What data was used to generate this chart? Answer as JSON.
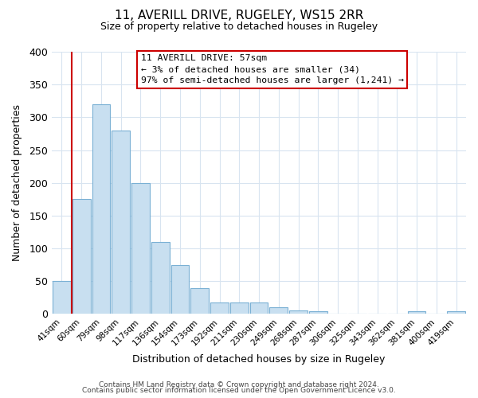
{
  "title": "11, AVERILL DRIVE, RUGELEY, WS15 2RR",
  "subtitle": "Size of property relative to detached houses in Rugeley",
  "xlabel": "Distribution of detached houses by size in Rugeley",
  "ylabel": "Number of detached properties",
  "bar_labels": [
    "41sqm",
    "60sqm",
    "79sqm",
    "98sqm",
    "117sqm",
    "136sqm",
    "154sqm",
    "173sqm",
    "192sqm",
    "211sqm",
    "230sqm",
    "249sqm",
    "268sqm",
    "287sqm",
    "306sqm",
    "325sqm",
    "343sqm",
    "362sqm",
    "381sqm",
    "400sqm",
    "419sqm"
  ],
  "bar_values": [
    50,
    175,
    320,
    280,
    200,
    110,
    75,
    40,
    18,
    18,
    18,
    10,
    5,
    4,
    0,
    0,
    0,
    0,
    4,
    0,
    4
  ],
  "bar_color": "#c8dff0",
  "bar_edge_color": "#7ab0d4",
  "annotation_title": "11 AVERILL DRIVE: 57sqm",
  "annotation_line1": "← 3% of detached houses are smaller (34)",
  "annotation_line2": "97% of semi-detached houses are larger (1,241) →",
  "annotation_box_color": "#ffffff",
  "annotation_box_edge": "#cc0000",
  "marker_line_color": "#cc0000",
  "ylim": [
    0,
    400
  ],
  "yticks": [
    0,
    50,
    100,
    150,
    200,
    250,
    300,
    350,
    400
  ],
  "footer1": "Contains HM Land Registry data © Crown copyright and database right 2024.",
  "footer2": "Contains public sector information licensed under the Open Government Licence v3.0.",
  "bg_color": "#ffffff",
  "plot_bg_color": "#ffffff",
  "grid_color": "#d8e4f0"
}
